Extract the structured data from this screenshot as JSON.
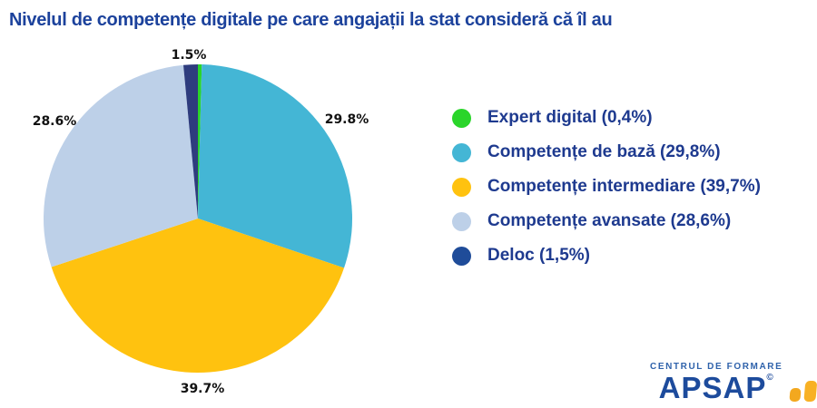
{
  "page": {
    "background": "#ffffff"
  },
  "title": {
    "text": "Nivelul de competențe digitale pe care angajații la stat consideră că îl au",
    "color": "#1C429C"
  },
  "chart_data": {
    "type": "pie",
    "title": "Nivelul de competențe digitale pe care angajații la stat consideră că îl au",
    "start_angle_deg": 0,
    "direction": "clockwise",
    "legend_position": "right",
    "total": 100,
    "slices": [
      {
        "name": "Expert digital",
        "value": 0.4,
        "color": "#2AD52A",
        "legend_label": "Expert digital (0,4%)"
      },
      {
        "name": "Competențe de bază",
        "value": 29.8,
        "color": "#44B6D5",
        "legend_label": "Competențe de bază (29,8%)",
        "pct_label": "29.8%"
      },
      {
        "name": "Competențe intermediare",
        "value": 39.7,
        "color": "#FFC20F",
        "legend_label": "Competențe intermediare (39,7%)",
        "pct_label": "39.7%"
      },
      {
        "name": "Competențe avansate",
        "value": 28.6,
        "color": "#BDD0E8",
        "legend_label": "Competențe avansate (28,6%)",
        "pct_label": "28.6%"
      },
      {
        "name": "Deloc",
        "value": 1.5,
        "color": "#2E3C7E",
        "legend_color": "#1F4C99",
        "legend_label": "Deloc (1,5%)",
        "pct_label": "1.5%"
      }
    ],
    "legend_text_color": "#1E3A8F",
    "outside_label_color": "#111111"
  },
  "logo": {
    "tagline": "CENTRUL DE FORMARE",
    "name": "APSAP",
    "mark": "©",
    "text_color": "#1D4B9C",
    "tagline_color": "#2F62AB",
    "bar_colors": [
      "#F3A81F",
      "#F8B124",
      "#FBBE2A"
    ]
  }
}
